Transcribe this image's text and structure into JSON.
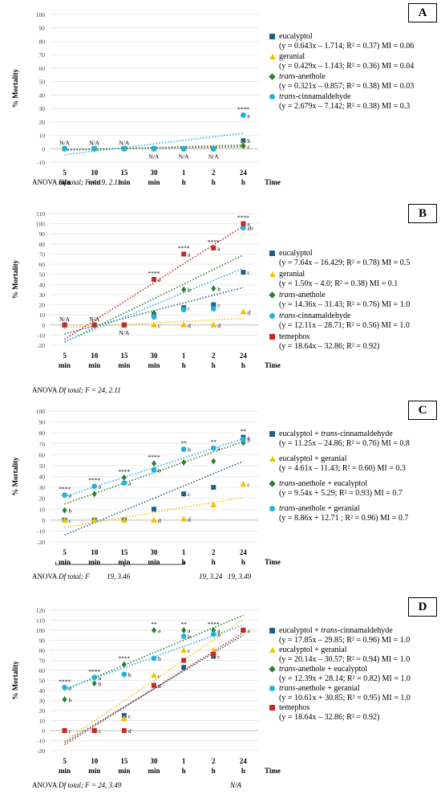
{
  "chart_data": [
    {
      "type": "scatter",
      "panel_label": "A",
      "ylabel": "% Mortality",
      "xlabel": "Time",
      "categories": [
        "5 min",
        "10 min",
        "15 min",
        "30 min",
        "1 h",
        "2 h",
        "24 h"
      ],
      "ylim": [
        -10,
        100
      ],
      "yticks": [
        -10,
        0,
        10,
        20,
        30,
        40,
        50,
        60,
        70,
        80,
        90,
        100
      ],
      "grid": true,
      "series": [
        {
          "name": "eucalyptol",
          "equation": "(y = 0.643x – 1.714; R² = 0.37) MI = 0.06",
          "color": "#1F5F87",
          "marker": "square",
          "values": [
            0,
            0,
            0,
            0,
            0,
            0,
            6
          ],
          "trend": [
            0.643,
            -1.714
          ],
          "labels": [
            "",
            "",
            "",
            "",
            "",
            "",
            "b"
          ]
        },
        {
          "name": "geranial",
          "equation": "(y = 0.429x – 1.143; R² = 0.36) MI = 0.04",
          "color": "#F5C000",
          "marker": "triangle",
          "values": [
            0,
            0,
            0,
            0,
            0,
            0,
            3
          ],
          "trend": [
            0.429,
            -1.143
          ],
          "labels": [
            "",
            "",
            "",
            "",
            "",
            "",
            ""
          ]
        },
        {
          "name": "trans-anethole",
          "name_italic": "trans",
          "name_rest": "-anethole",
          "equation": "(y = 0.321x – 0.857; R² = 0.38) MI = 0.03",
          "color": "#2E7D32",
          "marker": "diamond",
          "values": [
            0,
            0,
            0,
            0,
            0,
            0,
            2
          ],
          "trend": [
            0.321,
            -0.857
          ],
          "labels": [
            "",
            "",
            "",
            "",
            "",
            "",
            "c"
          ]
        },
        {
          "name": "trans-cinnamaldehyde",
          "name_italic": "trans",
          "name_rest": "-cinnamaldehyde",
          "equation": "(y = 2.679x – 7.142; R² = 0.38) MI = 0.3",
          "color": "#1FB2E0",
          "marker": "circle",
          "values": [
            0,
            0,
            0,
            0,
            0,
            0,
            25
          ],
          "trend": [
            2.679,
            -7.142
          ],
          "labels": [
            "",
            "",
            "",
            "",
            "",
            "",
            "a"
          ]
        }
      ],
      "annotations": [
        {
          "x": "5 min",
          "y": 0,
          "text": "N/A",
          "pos": "above"
        },
        {
          "x": "10 min",
          "y": 0,
          "text": "N/A",
          "pos": "above"
        },
        {
          "x": "15 min",
          "y": 0,
          "text": "N/A",
          "pos": "above"
        },
        {
          "x": "30 min",
          "y": 0,
          "text": "N/A",
          "pos": "below"
        },
        {
          "x": "1 h",
          "y": 0,
          "text": "N/A",
          "pos": "below"
        },
        {
          "x": "2 h",
          "y": 0,
          "text": "N/A",
          "pos": "below"
        },
        {
          "x": "24 h",
          "y": 25,
          "text": "****",
          "pos": "above"
        }
      ],
      "anova": {
        "prefix": "ANOVA ",
        "italic": "Df total; F = 19, 2.11"
      }
    },
    {
      "type": "scatter",
      "panel_label": "B",
      "ylabel": "% Mortality",
      "xlabel": "Time",
      "categories": [
        "5 min",
        "10 min",
        "15 min",
        "30 min",
        "1 h",
        "2 h",
        "24 h"
      ],
      "ylim": [
        -20,
        110
      ],
      "yticks": [
        -20,
        -10,
        0,
        10,
        20,
        30,
        40,
        50,
        60,
        70,
        80,
        90,
        100,
        110
      ],
      "grid": true,
      "series": [
        {
          "name": "eucalyptol",
          "equation": "(y = 7.64x – 16.429; R² = 0.78) MI = 0.5",
          "color": "#1F5F87",
          "marker": "square",
          "values": [
            0,
            0,
            0,
            10,
            17,
            20,
            52
          ],
          "trend": [
            7.64,
            -16.429
          ],
          "labels": [
            "",
            "",
            "",
            "",
            "c",
            "c",
            "c"
          ]
        },
        {
          "name": "geranial",
          "equation": "(y = 1.50x – 4.0; R² = 0.38) MI = 0.1",
          "color": "#F5C000",
          "marker": "triangle",
          "values": [
            0,
            0,
            0,
            0,
            0,
            0,
            13
          ],
          "trend": [
            1.5,
            -4.0
          ],
          "labels": [
            "",
            "",
            "",
            "c",
            "d",
            "d",
            "d"
          ]
        },
        {
          "name": "trans-anethole",
          "name_italic": "trans",
          "name_rest": "-anethole",
          "equation": "(y = 14.36x – 31.43; R² = 0.76) MI = 1.0",
          "color": "#2E7D32",
          "marker": "diamond",
          "values": [
            0,
            0,
            0,
            12,
            35,
            36,
            96
          ],
          "trend": [
            14.36,
            -31.43
          ],
          "labels": [
            "",
            "",
            "",
            "",
            "b",
            "b",
            ""
          ]
        },
        {
          "name": "trans-cinnamaldehyde",
          "name_italic": "trans",
          "name_rest": "-cinnamaldehyde",
          "equation": "(y = 12.11x – 28.71; R² = 0.56) MI = 1.0",
          "color": "#1FB2E0",
          "marker": "circle",
          "values": [
            0,
            0,
            0,
            8,
            15,
            16,
            96
          ],
          "trend": [
            12.11,
            -28.71
          ],
          "labels": [
            "",
            "",
            "",
            "",
            "",
            "",
            "ab"
          ]
        },
        {
          "name": "temephos",
          "equation": "(y = 18.64x – 32.86; R² = 0.92)",
          "color": "#C62828",
          "marker": "square",
          "values": [
            0,
            0,
            0,
            45,
            70,
            76,
            100
          ],
          "trend": [
            18.64,
            -32.86
          ],
          "labels": [
            "",
            "",
            "",
            "a",
            "a",
            "a",
            "a"
          ]
        }
      ],
      "annotations": [
        {
          "x": "5 min",
          "y": 0,
          "text": "N/A",
          "pos": "above"
        },
        {
          "x": "10 min",
          "y": 0,
          "text": "N/A",
          "pos": "above"
        },
        {
          "x": "15 min",
          "y": 0,
          "text": "N/A",
          "pos": "below"
        },
        {
          "x": "30 min",
          "y": 45,
          "text": "****",
          "pos": "above"
        },
        {
          "x": "1 h",
          "y": 70,
          "text": "****",
          "pos": "above"
        },
        {
          "x": "2 h",
          "y": 76,
          "text": "****",
          "pos": "above"
        },
        {
          "x": "24 h",
          "y": 100,
          "text": "****",
          "pos": "above"
        }
      ],
      "anova": {
        "prefix": "ANOVA ",
        "italic": "Df total; F = 24, 2.11"
      }
    },
    {
      "type": "scatter",
      "panel_label": "C",
      "ylabel": "% Mortality",
      "xlabel": "Time",
      "categories": [
        "5 min",
        "10 min",
        "15 min",
        "30 min",
        "1 h",
        "2 h",
        "24 h"
      ],
      "ylim": [
        -20,
        100
      ],
      "yticks": [
        -20,
        -10,
        0,
        10,
        20,
        30,
        40,
        50,
        60,
        70,
        80,
        90,
        100
      ],
      "grid": true,
      "series": [
        {
          "name": "eucalyptol + trans-cinnamaldehyde",
          "name_italic": "trans",
          "name_pre": "eucalyptol + ",
          "name_rest": "-cinnamaldehyde",
          "equation": "(y = 11.25x – 24.86; R² = 0.76) MI = 0.8",
          "color": "#1F5F87",
          "marker": "square",
          "values": [
            0,
            0,
            0,
            10,
            24,
            30,
            76
          ],
          "trend": [
            11.25,
            -24.86
          ],
          "labels": [
            "c",
            "",
            "",
            "",
            "c",
            "",
            "a"
          ]
        },
        {
          "name": "eucalyptol + geranial",
          "equation": "(y = 4.61x – 11.43; R² = 0.60) MI = 0.3",
          "color": "#F5C000",
          "marker": "triangle",
          "values": [
            0,
            0,
            0,
            0,
            1,
            14,
            33
          ],
          "trend": [
            4.61,
            -11.43
          ],
          "labels": [
            "",
            "",
            "",
            "d",
            "d",
            "",
            "c"
          ]
        },
        {
          "name": "trans-anethole + eucalyptol",
          "name_italic": "trans",
          "name_rest": "-anethole + eucalyptol",
          "equation": "(y = 9.54x + 5.29; R² = 0.93) MI = 0.7",
          "color": "#2E7D32",
          "marker": "diamond",
          "values": [
            9,
            24,
            39,
            52,
            53,
            54,
            71
          ],
          "trend": [
            9.54,
            5.29
          ],
          "labels": [
            "b",
            "",
            "",
            "",
            "",
            "",
            ""
          ]
        },
        {
          "name": "trans-anethole + geranial",
          "name_italic": "trans",
          "name_rest": "-anethole + geranial",
          "equation": "(y = 8.86x + 12.71 ; R² = 0.96) MI = 0.7",
          "color": "#1FB2E0",
          "marker": "circle",
          "values": [
            23,
            31,
            34,
            46,
            65,
            66,
            74
          ],
          "trend": [
            8.86,
            12.71
          ],
          "labels": [
            "a",
            "a",
            "a",
            "b",
            "b",
            "a",
            "b"
          ]
        }
      ],
      "annotations": [
        {
          "x": "5 min",
          "y": 23,
          "text": "****",
          "pos": "above"
        },
        {
          "x": "10 min",
          "y": 31,
          "text": "****",
          "pos": "above"
        },
        {
          "x": "15 min",
          "y": 39,
          "text": "****",
          "pos": "above"
        },
        {
          "x": "30 min",
          "y": 52,
          "text": "****",
          "pos": "above"
        },
        {
          "x": "1 h",
          "y": 65,
          "text": "**",
          "pos": "above"
        },
        {
          "x": "2 h",
          "y": 66,
          "text": "**",
          "pos": "above"
        },
        {
          "x": "24 h",
          "y": 76,
          "text": "**",
          "pos": "above"
        }
      ],
      "anova": {
        "prefix": "ANOVA ",
        "italic": "Df total; F"
      },
      "anova_fragments": [
        "19, 3.46",
        "19, 3.24",
        "19, 3.49"
      ]
    },
    {
      "type": "scatter",
      "panel_label": "D",
      "ylabel": "% Mortality",
      "xlabel": "Time",
      "categories": [
        "5 min",
        "10 min",
        "15 min",
        "30 min",
        "1 h",
        "2 h",
        "24 h"
      ],
      "ylim": [
        -20,
        120
      ],
      "yticks": [
        -20,
        -10,
        0,
        10,
        20,
        30,
        40,
        50,
        60,
        70,
        80,
        90,
        100,
        110,
        120
      ],
      "grid": true,
      "series": [
        {
          "name": "eucalyptol + trans-cinnamaldehyde",
          "name_italic": "trans",
          "name_pre": "eucalyptol + ",
          "name_rest": "-cinnamaldehyde",
          "equation": "(y = 17.85x – 29.85; R² = 0.96) MI = 1.0",
          "color": "#1F5F87",
          "marker": "square",
          "values": [
            0,
            0,
            15,
            45,
            63,
            74,
            100
          ],
          "trend": [
            17.85,
            -29.85
          ],
          "labels": [
            "",
            "",
            "c",
            "d",
            "",
            "c",
            ""
          ]
        },
        {
          "name": "eucalyptol + geranial",
          "equation": "(y = 20.14x – 30.57; R² = 0.94) MI = 1.0",
          "color": "#F5C000",
          "marker": "triangle",
          "values": [
            0,
            0,
            12,
            55,
            80,
            80,
            100
          ],
          "trend": [
            20.14,
            -30.57
          ],
          "labels": [
            "",
            "",
            "",
            "c",
            "c",
            "",
            ""
          ]
        },
        {
          "name": "trans-anethole + eucalyptol",
          "name_italic": "trans",
          "name_rest": "-anethole + eucalyptol",
          "equation": "(y = 12.39x + 28.14; R² = 0.82) MI = 1.0",
          "color": "#2E7D32",
          "marker": "diamond",
          "values": [
            31,
            47,
            66,
            100,
            100,
            100,
            100
          ],
          "trend": [
            12.39,
            28.14
          ],
          "labels": [
            "b",
            "b",
            "",
            "a",
            "a",
            "a",
            ""
          ]
        },
        {
          "name": "trans-anethole + geranial",
          "name_italic": "trans",
          "name_rest": "-anethole + geranial",
          "equation": "(y = 10.61x + 30.85; R² = 0.95) MI = 1.0",
          "color": "#1FB2E0",
          "marker": "circle",
          "values": [
            43,
            53,
            56,
            72,
            94,
            96,
            100
          ],
          "trend": [
            10.61,
            30.85
          ],
          "labels": [
            "a",
            "a",
            "b",
            "b",
            "b",
            "b",
            ""
          ]
        },
        {
          "name": "temephos",
          "equation": "(y = 18.64x – 32.86; R² = 0.92)",
          "color": "#C62828",
          "marker": "square",
          "values": [
            0,
            0,
            0,
            45,
            70,
            76,
            100
          ],
          "trend": [
            18.64,
            -32.86
          ],
          "labels": [
            "c",
            "c",
            "d",
            "",
            "",
            "",
            "a"
          ]
        }
      ],
      "annotations": [
        {
          "x": "5 min",
          "y": 43,
          "text": "****",
          "pos": "above"
        },
        {
          "x": "10 min",
          "y": 53,
          "text": "****",
          "pos": "above"
        },
        {
          "x": "15 min",
          "y": 66,
          "text": "****",
          "pos": "above"
        },
        {
          "x": "30 min",
          "y": 100,
          "text": "**",
          "pos": "above"
        },
        {
          "x": "1 h",
          "y": 100,
          "text": "**",
          "pos": "above"
        },
        {
          "x": "2 h",
          "y": 100,
          "text": "****",
          "pos": "above"
        }
      ],
      "anova": {
        "prefix": "ANOVA ",
        "italic": "Df total; F = 24, 3.49"
      },
      "anova_fragments": [
        "N/A"
      ]
    }
  ]
}
